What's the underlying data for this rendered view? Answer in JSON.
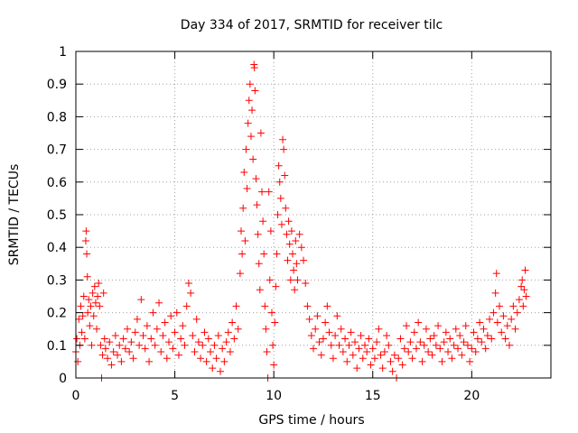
{
  "chart_data": {
    "type": "scatter",
    "title": "Day 334 of 2017, SRMTID for receiver tilc",
    "xlabel": "GPS time / hours",
    "ylabel": "SRMTID / TECUs",
    "xlim": [
      0,
      24
    ],
    "ylim": [
      0,
      1
    ],
    "xticks": [
      0,
      5,
      10,
      15,
      20
    ],
    "xtick_labels": [
      "0",
      "5",
      "10",
      "15",
      "20"
    ],
    "yticks": [
      0,
      0.1,
      0.2,
      0.3,
      0.4,
      0.5,
      0.6,
      0.7,
      0.8,
      0.9,
      1
    ],
    "ytick_labels": [
      "0",
      "0.1",
      "0.2",
      "0.3",
      "0.4",
      "0.5",
      "0.6",
      "0.7",
      "0.8",
      "0.9",
      "1"
    ],
    "grid": "dotted",
    "marker": "+",
    "series": [
      {
        "name": "tilc",
        "color": "#ff0000",
        "points": [
          [
            0.0,
            0.08
          ],
          [
            0.05,
            0.12
          ],
          [
            0.1,
            0.05
          ],
          [
            0.15,
            0.18
          ],
          [
            0.2,
            0.1
          ],
          [
            0.25,
            0.22
          ],
          [
            0.3,
            0.14
          ],
          [
            0.35,
            0.19
          ],
          [
            0.4,
            0.25
          ],
          [
            0.45,
            0.12
          ],
          [
            0.5,
            0.42
          ],
          [
            0.52,
            0.45
          ],
          [
            0.55,
            0.38
          ],
          [
            0.58,
            0.31
          ],
          [
            0.6,
            0.2
          ],
          [
            0.65,
            0.24
          ],
          [
            0.7,
            0.16
          ],
          [
            0.75,
            0.22
          ],
          [
            0.8,
            0.1
          ],
          [
            0.85,
            0.26
          ],
          [
            0.9,
            0.19
          ],
          [
            0.95,
            0.28
          ],
          [
            1.0,
            0.23
          ],
          [
            1.05,
            0.15
          ],
          [
            1.1,
            0.25
          ],
          [
            1.15,
            0.29
          ],
          [
            1.2,
            0.22
          ],
          [
            1.25,
            0.1
          ],
          [
            1.3,
            0.0
          ],
          [
            1.35,
            0.07
          ],
          [
            1.4,
            0.26
          ],
          [
            1.45,
            0.12
          ],
          [
            1.5,
            0.09
          ],
          [
            1.6,
            0.06
          ],
          [
            1.7,
            0.11
          ],
          [
            1.8,
            0.04
          ],
          [
            1.9,
            0.08
          ],
          [
            2.0,
            0.13
          ],
          [
            2.1,
            0.07
          ],
          [
            2.2,
            0.1
          ],
          [
            2.3,
            0.05
          ],
          [
            2.4,
            0.12
          ],
          [
            2.5,
            0.09
          ],
          [
            2.6,
            0.15
          ],
          [
            2.7,
            0.08
          ],
          [
            2.8,
            0.11
          ],
          [
            2.9,
            0.06
          ],
          [
            3.0,
            0.14
          ],
          [
            3.1,
            0.18
          ],
          [
            3.2,
            0.1
          ],
          [
            3.3,
            0.24
          ],
          [
            3.4,
            0.13
          ],
          [
            3.5,
            0.09
          ],
          [
            3.6,
            0.16
          ],
          [
            3.7,
            0.05
          ],
          [
            3.8,
            0.12
          ],
          [
            3.9,
            0.2
          ],
          [
            4.0,
            0.1
          ],
          [
            4.1,
            0.15
          ],
          [
            4.2,
            0.23
          ],
          [
            4.3,
            0.08
          ],
          [
            4.4,
            0.13
          ],
          [
            4.5,
            0.17
          ],
          [
            4.6,
            0.06
          ],
          [
            4.7,
            0.11
          ],
          [
            4.8,
            0.19
          ],
          [
            4.9,
            0.09
          ],
          [
            5.0,
            0.14
          ],
          [
            5.1,
            0.2
          ],
          [
            5.2,
            0.07
          ],
          [
            5.3,
            0.12
          ],
          [
            5.4,
            0.16
          ],
          [
            5.5,
            0.1
          ],
          [
            5.6,
            0.22
          ],
          [
            5.7,
            0.29
          ],
          [
            5.8,
            0.26
          ],
          [
            5.9,
            0.13
          ],
          [
            6.0,
            0.08
          ],
          [
            6.1,
            0.18
          ],
          [
            6.2,
            0.11
          ],
          [
            6.3,
            0.06
          ],
          [
            6.4,
            0.1
          ],
          [
            6.5,
            0.14
          ],
          [
            6.6,
            0.05
          ],
          [
            6.7,
            0.12
          ],
          [
            6.8,
            0.08
          ],
          [
            6.9,
            0.03
          ],
          [
            7.0,
            0.1
          ],
          [
            7.1,
            0.06
          ],
          [
            7.2,
            0.13
          ],
          [
            7.3,
            0.02
          ],
          [
            7.4,
            0.09
          ],
          [
            7.5,
            0.05
          ],
          [
            7.6,
            0.11
          ],
          [
            7.7,
            0.14
          ],
          [
            7.8,
            0.08
          ],
          [
            7.9,
            0.17
          ],
          [
            8.0,
            0.12
          ],
          [
            8.1,
            0.22
          ],
          [
            8.2,
            0.15
          ],
          [
            8.3,
            0.32
          ],
          [
            8.35,
            0.45
          ],
          [
            8.4,
            0.38
          ],
          [
            8.45,
            0.52
          ],
          [
            8.5,
            0.63
          ],
          [
            8.55,
            0.42
          ],
          [
            8.6,
            0.7
          ],
          [
            8.65,
            0.58
          ],
          [
            8.7,
            0.78
          ],
          [
            8.75,
            0.85
          ],
          [
            8.8,
            0.9
          ],
          [
            8.85,
            0.74
          ],
          [
            8.9,
            0.82
          ],
          [
            8.95,
            0.67
          ],
          [
            9.0,
            0.96
          ],
          [
            9.02,
            0.95
          ],
          [
            9.05,
            0.88
          ],
          [
            9.1,
            0.61
          ],
          [
            9.15,
            0.53
          ],
          [
            9.2,
            0.44
          ],
          [
            9.25,
            0.35
          ],
          [
            9.3,
            0.27
          ],
          [
            9.35,
            0.75
          ],
          [
            9.4,
            0.57
          ],
          [
            9.45,
            0.48
          ],
          [
            9.5,
            0.38
          ],
          [
            9.55,
            0.22
          ],
          [
            9.6,
            0.15
          ],
          [
            9.65,
            0.08
          ],
          [
            9.7,
            0.0
          ],
          [
            9.75,
            0.57
          ],
          [
            9.8,
            0.3
          ],
          [
            9.85,
            0.45
          ],
          [
            9.9,
            0.2
          ],
          [
            9.95,
            0.1
          ],
          [
            10.0,
            0.04
          ],
          [
            10.05,
            0.17
          ],
          [
            10.1,
            0.28
          ],
          [
            10.15,
            0.38
          ],
          [
            10.2,
            0.5
          ],
          [
            10.25,
            0.65
          ],
          [
            10.3,
            0.6
          ],
          [
            10.35,
            0.55
          ],
          [
            10.4,
            0.47
          ],
          [
            10.45,
            0.73
          ],
          [
            10.5,
            0.7
          ],
          [
            10.55,
            0.62
          ],
          [
            10.6,
            0.52
          ],
          [
            10.65,
            0.44
          ],
          [
            10.7,
            0.36
          ],
          [
            10.75,
            0.48
          ],
          [
            10.8,
            0.41
          ],
          [
            10.85,
            0.3
          ],
          [
            10.9,
            0.45
          ],
          [
            10.95,
            0.38
          ],
          [
            11.0,
            0.33
          ],
          [
            11.05,
            0.27
          ],
          [
            11.1,
            0.42
          ],
          [
            11.15,
            0.35
          ],
          [
            11.2,
            0.3
          ],
          [
            11.3,
            0.44
          ],
          [
            11.4,
            0.4
          ],
          [
            11.5,
            0.36
          ],
          [
            11.6,
            0.29
          ],
          [
            11.7,
            0.22
          ],
          [
            11.8,
            0.18
          ],
          [
            11.9,
            0.13
          ],
          [
            12.0,
            0.09
          ],
          [
            12.1,
            0.15
          ],
          [
            12.2,
            0.19
          ],
          [
            12.3,
            0.11
          ],
          [
            12.4,
            0.07
          ],
          [
            12.5,
            0.12
          ],
          [
            12.6,
            0.17
          ],
          [
            12.7,
            0.22
          ],
          [
            12.8,
            0.14
          ],
          [
            12.9,
            0.1
          ],
          [
            13.0,
            0.06
          ],
          [
            13.1,
            0.13
          ],
          [
            13.2,
            0.19
          ],
          [
            13.3,
            0.1
          ],
          [
            13.4,
            0.15
          ],
          [
            13.5,
            0.08
          ],
          [
            13.6,
            0.12
          ],
          [
            13.7,
            0.05
          ],
          [
            13.8,
            0.1
          ],
          [
            13.9,
            0.14
          ],
          [
            14.0,
            0.07
          ],
          [
            14.1,
            0.11
          ],
          [
            14.2,
            0.03
          ],
          [
            14.3,
            0.09
          ],
          [
            14.4,
            0.13
          ],
          [
            14.5,
            0.06
          ],
          [
            14.6,
            0.1
          ],
          [
            14.7,
            0.08
          ],
          [
            14.8,
            0.12
          ],
          [
            14.9,
            0.04
          ],
          [
            15.0,
            0.09
          ],
          [
            15.1,
            0.06
          ],
          [
            15.2,
            0.11
          ],
          [
            15.3,
            0.15
          ],
          [
            15.4,
            0.07
          ],
          [
            15.5,
            0.03
          ],
          [
            15.6,
            0.08
          ],
          [
            15.7,
            0.13
          ],
          [
            15.8,
            0.1
          ],
          [
            15.9,
            0.05
          ],
          [
            16.0,
            0.02
          ],
          [
            16.1,
            0.07
          ],
          [
            16.2,
            0.0
          ],
          [
            16.3,
            0.06
          ],
          [
            16.4,
            0.12
          ],
          [
            16.5,
            0.04
          ],
          [
            16.6,
            0.09
          ],
          [
            16.7,
            0.16
          ],
          [
            16.8,
            0.08
          ],
          [
            16.9,
            0.11
          ],
          [
            17.0,
            0.06
          ],
          [
            17.1,
            0.14
          ],
          [
            17.2,
            0.09
          ],
          [
            17.3,
            0.17
          ],
          [
            17.4,
            0.11
          ],
          [
            17.5,
            0.05
          ],
          [
            17.6,
            0.1
          ],
          [
            17.7,
            0.15
          ],
          [
            17.8,
            0.08
          ],
          [
            17.9,
            0.12
          ],
          [
            18.0,
            0.07
          ],
          [
            18.1,
            0.13
          ],
          [
            18.2,
            0.1
          ],
          [
            18.3,
            0.16
          ],
          [
            18.4,
            0.09
          ],
          [
            18.5,
            0.05
          ],
          [
            18.6,
            0.11
          ],
          [
            18.7,
            0.14
          ],
          [
            18.8,
            0.08
          ],
          [
            18.9,
            0.12
          ],
          [
            19.0,
            0.06
          ],
          [
            19.1,
            0.1
          ],
          [
            19.2,
            0.15
          ],
          [
            19.3,
            0.09
          ],
          [
            19.4,
            0.13
          ],
          [
            19.5,
            0.07
          ],
          [
            19.6,
            0.11
          ],
          [
            19.7,
            0.16
          ],
          [
            19.8,
            0.1
          ],
          [
            19.9,
            0.05
          ],
          [
            20.0,
            0.09
          ],
          [
            20.1,
            0.14
          ],
          [
            20.2,
            0.08
          ],
          [
            20.3,
            0.12
          ],
          [
            20.4,
            0.17
          ],
          [
            20.5,
            0.11
          ],
          [
            20.6,
            0.15
          ],
          [
            20.7,
            0.09
          ],
          [
            20.8,
            0.13
          ],
          [
            20.9,
            0.18
          ],
          [
            21.0,
            0.12
          ],
          [
            21.1,
            0.2
          ],
          [
            21.2,
            0.26
          ],
          [
            21.25,
            0.32
          ],
          [
            21.3,
            0.17
          ],
          [
            21.4,
            0.22
          ],
          [
            21.5,
            0.14
          ],
          [
            21.6,
            0.19
          ],
          [
            21.7,
            0.12
          ],
          [
            21.8,
            0.16
          ],
          [
            21.9,
            0.1
          ],
          [
            22.0,
            0.18
          ],
          [
            22.1,
            0.22
          ],
          [
            22.2,
            0.15
          ],
          [
            22.3,
            0.2
          ],
          [
            22.4,
            0.24
          ],
          [
            22.5,
            0.28
          ],
          [
            22.55,
            0.3
          ],
          [
            22.6,
            0.22
          ],
          [
            22.65,
            0.27
          ],
          [
            22.7,
            0.33
          ],
          [
            22.75,
            0.25
          ]
        ]
      }
    ]
  }
}
